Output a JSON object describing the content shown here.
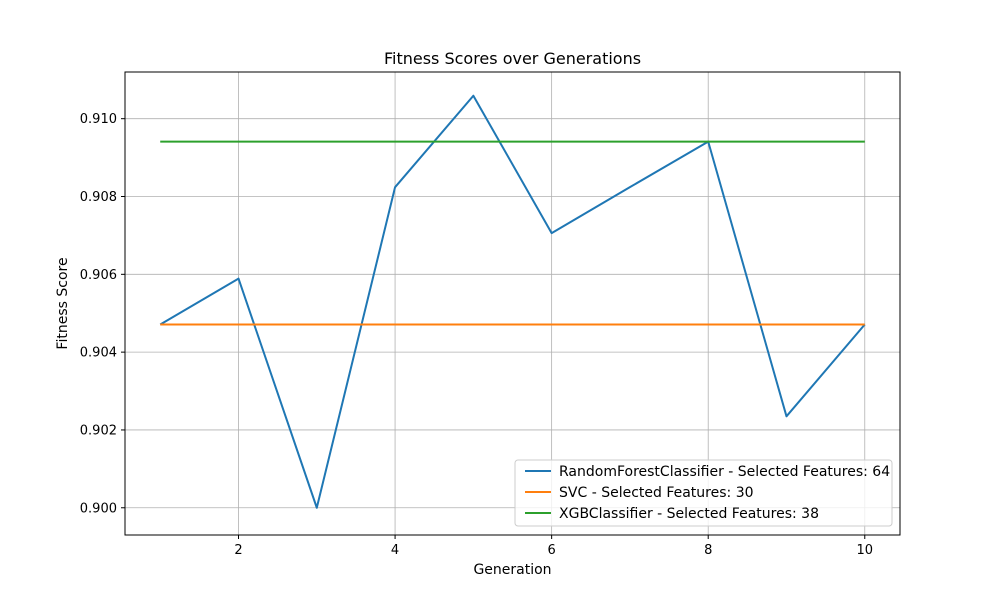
{
  "chart_data": {
    "type": "line",
    "title": "Fitness Scores over Generations",
    "xlabel": "Generation",
    "ylabel": "Fitness Score",
    "x": [
      1,
      2,
      3,
      4,
      5,
      6,
      7,
      8,
      9,
      10
    ],
    "xlim": [
      0.55,
      10.45
    ],
    "ylim": [
      0.8993,
      0.9112
    ],
    "xticks": [
      2,
      4,
      6,
      8,
      10
    ],
    "xtick_labels": [
      "2",
      "4",
      "6",
      "8",
      "10"
    ],
    "yticks": [
      0.9,
      0.902,
      0.904,
      0.906,
      0.908,
      0.91
    ],
    "ytick_labels": [
      "0.900",
      "0.902",
      "0.904",
      "0.906",
      "0.908",
      "0.910"
    ],
    "grid": true,
    "legend_position": "lower-right",
    "series": [
      {
        "name": "RandomForestClassifier - Selected Features: 64",
        "color": "#1f77b4",
        "values": [
          0.90471,
          0.90589,
          0.9,
          0.90824,
          0.91059,
          0.90706,
          0.90824,
          0.90941,
          0.90235,
          0.90471
        ]
      },
      {
        "name": "SVC - Selected Features: 30",
        "color": "#ff7f0e",
        "values": [
          0.90471,
          0.90471,
          0.90471,
          0.90471,
          0.90471,
          0.90471,
          0.90471,
          0.90471,
          0.90471,
          0.90471
        ]
      },
      {
        "name": "XGBClassifier - Selected Features: 38",
        "color": "#2ca02c",
        "values": [
          0.90941,
          0.90941,
          0.90941,
          0.90941,
          0.90941,
          0.90941,
          0.90941,
          0.90941,
          0.90941,
          0.90941
        ]
      }
    ]
  }
}
